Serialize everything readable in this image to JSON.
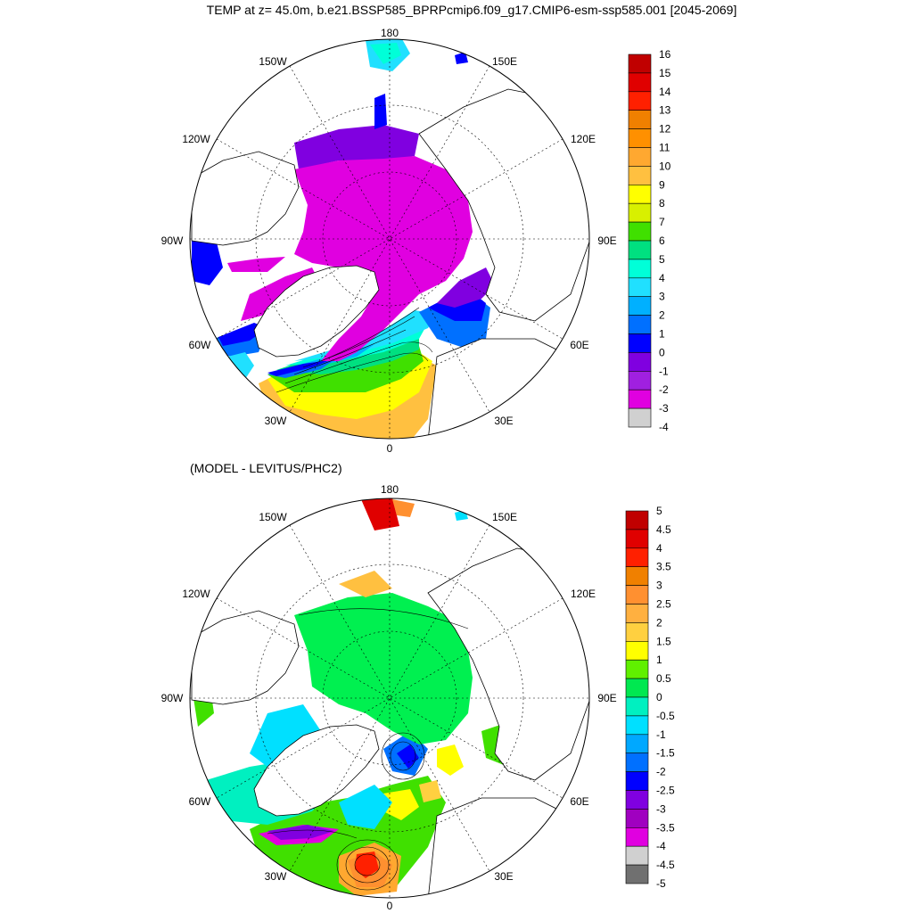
{
  "figure": {
    "title": "TEMP at z=  45.0m, b.e21.BSSP585_BPRPcmip6.f09_g17.CMIP6-esm-ssp585.001 [2045-2069]",
    "subtitle": "(MODEL - LEVITUS/PHC2)"
  },
  "map": {
    "projection": "north-polar-stereographic",
    "lon_labels": [
      "180",
      "150E",
      "120E",
      "90E",
      "60E",
      "30E",
      "0",
      "30W",
      "60W",
      "90W",
      "120W",
      "150W"
    ]
  },
  "panel_top": {
    "variable": "TEMP",
    "colorbar": {
      "labels": [
        "16",
        "15",
        "14",
        "13",
        "12",
        "11",
        "10",
        "9",
        "8",
        "7",
        "6",
        "5",
        "4",
        "3",
        "2",
        "1",
        "0",
        "-1",
        "-2",
        "-3",
        "-4"
      ],
      "colors": [
        "#c00000",
        "#e00000",
        "#ff2000",
        "#f08000",
        "#ff9000",
        "#ffa830",
        "#ffc040",
        "#ffff00",
        "#d8f000",
        "#40e000",
        "#00e080",
        "#00ffd8",
        "#20e0ff",
        "#00b0ff",
        "#0070ff",
        "#0000ff",
        "#8000e0",
        "#a020e0",
        "#e000e0",
        "#d0d0d0"
      ]
    }
  },
  "panel_bottom": {
    "variable": "TEMP difference",
    "colorbar": {
      "labels": [
        "5",
        "4.5",
        "4",
        "3.5",
        "3",
        "2.5",
        "2",
        "1.5",
        "1",
        "0.5",
        "0",
        "-0.5",
        "-1",
        "-1.5",
        "-2",
        "-2.5",
        "-3",
        "-3.5",
        "-4",
        "-4.5",
        "-5"
      ],
      "colors": [
        "#c00000",
        "#e00000",
        "#ff2000",
        "#f08000",
        "#ff9030",
        "#ffb040",
        "#ffd040",
        "#ffff00",
        "#60f000",
        "#00e850",
        "#00f0c0",
        "#00e0ff",
        "#00a8ff",
        "#0070ff",
        "#0000ff",
        "#8000e0",
        "#a000c0",
        "#e000e0",
        "#d0d0d0",
        "#707070"
      ]
    }
  },
  "colors": {
    "land": "#ffffff",
    "ocean_top_arctic": "#e000e0",
    "ocean_top_shelf": "#8000e0",
    "ocean_bottom_arctic": "#00f050"
  }
}
